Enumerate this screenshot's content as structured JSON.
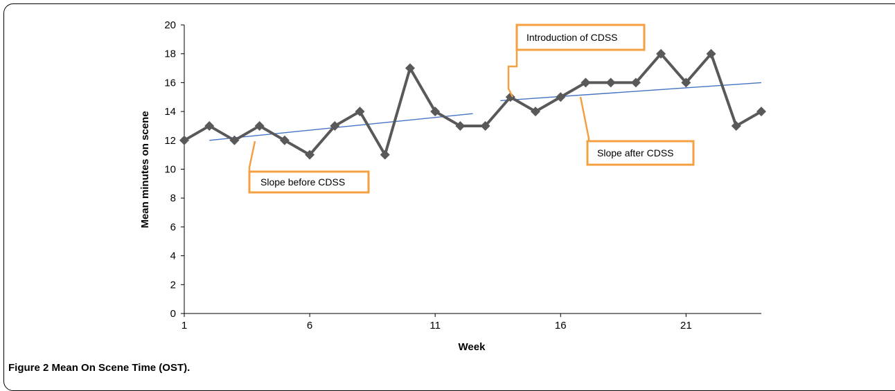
{
  "chart_data": {
    "type": "line",
    "xlabel": "Week",
    "ylabel": "Mean minutes on scene",
    "xlim": [
      1,
      24
    ],
    "ylim": [
      0,
      20
    ],
    "x_ticks": [
      1,
      6,
      11,
      16,
      21
    ],
    "y_ticks": [
      0,
      2,
      4,
      6,
      8,
      10,
      12,
      14,
      16,
      18,
      20
    ],
    "grid": false,
    "series": [
      {
        "x": [
          1,
          2,
          3,
          4,
          5,
          6,
          7,
          8,
          9,
          10,
          11,
          12,
          13,
          14,
          15,
          16,
          17,
          18,
          19,
          20,
          21,
          22,
          23,
          24
        ],
        "values": [
          12,
          13,
          12,
          13,
          12,
          11,
          13,
          14,
          11,
          17,
          14,
          13,
          13,
          15,
          14,
          15,
          16,
          16,
          16,
          18,
          16,
          18,
          13,
          14
        ],
        "color": "#595959",
        "marker": "diamond"
      }
    ],
    "trendlines": [
      {
        "x": [
          2,
          12.5
        ],
        "y": [
          12,
          13.85
        ],
        "color": "#4472C4"
      },
      {
        "x": [
          13.6,
          24
        ],
        "y": [
          14.75,
          16
        ],
        "color": "#4472C4"
      }
    ],
    "annotations": [
      {
        "text": "Slope before CDSS",
        "color": "#F4A040"
      },
      {
        "text": "Introduction of CDSS",
        "color": "#F4A040"
      },
      {
        "text": "Slope after CDSS",
        "color": "#F4A040"
      }
    ]
  },
  "caption": {
    "label": "Figure 2",
    "title": "Mean On Scene Time (OST)."
  }
}
